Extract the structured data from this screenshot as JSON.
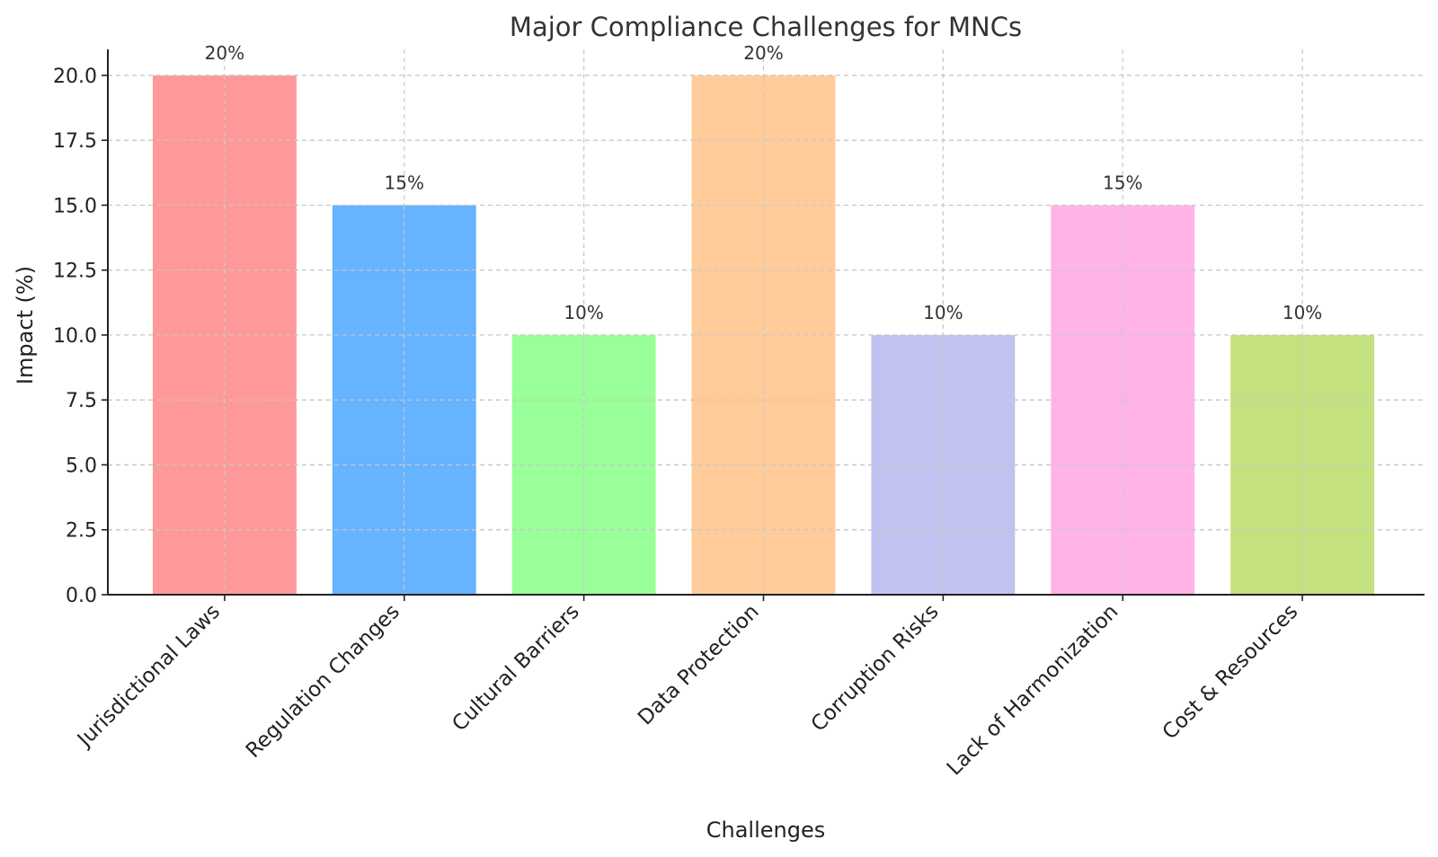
{
  "chart_data": {
    "type": "bar",
    "title": "Major Compliance Challenges for MNCs",
    "xlabel": "Challenges",
    "ylabel": "Impact (%)",
    "categories": [
      "Jurisdictional Laws",
      "Regulation Changes",
      "Cultural Barriers",
      "Data Protection",
      "Corruption Risks",
      "Lack of Harmonization",
      "Cost & Resources"
    ],
    "values": [
      20,
      15,
      10,
      20,
      10,
      15,
      10
    ],
    "data_labels": [
      "20%",
      "15%",
      "10%",
      "20%",
      "10%",
      "15%",
      "10%"
    ],
    "colors": [
      "#ff9999",
      "#66b3ff",
      "#99ff99",
      "#ffcc99",
      "#c2c2f0",
      "#ffb3e6",
      "#c4e17f"
    ],
    "yticks": [
      0.0,
      2.5,
      5.0,
      7.5,
      10.0,
      12.5,
      15.0,
      17.5,
      20.0
    ],
    "ytick_labels": [
      "0.0",
      "2.5",
      "5.0",
      "7.5",
      "10.0",
      "12.5",
      "15.0",
      "17.5",
      "20.0"
    ],
    "ylim": [
      0,
      21
    ],
    "grid": true
  }
}
